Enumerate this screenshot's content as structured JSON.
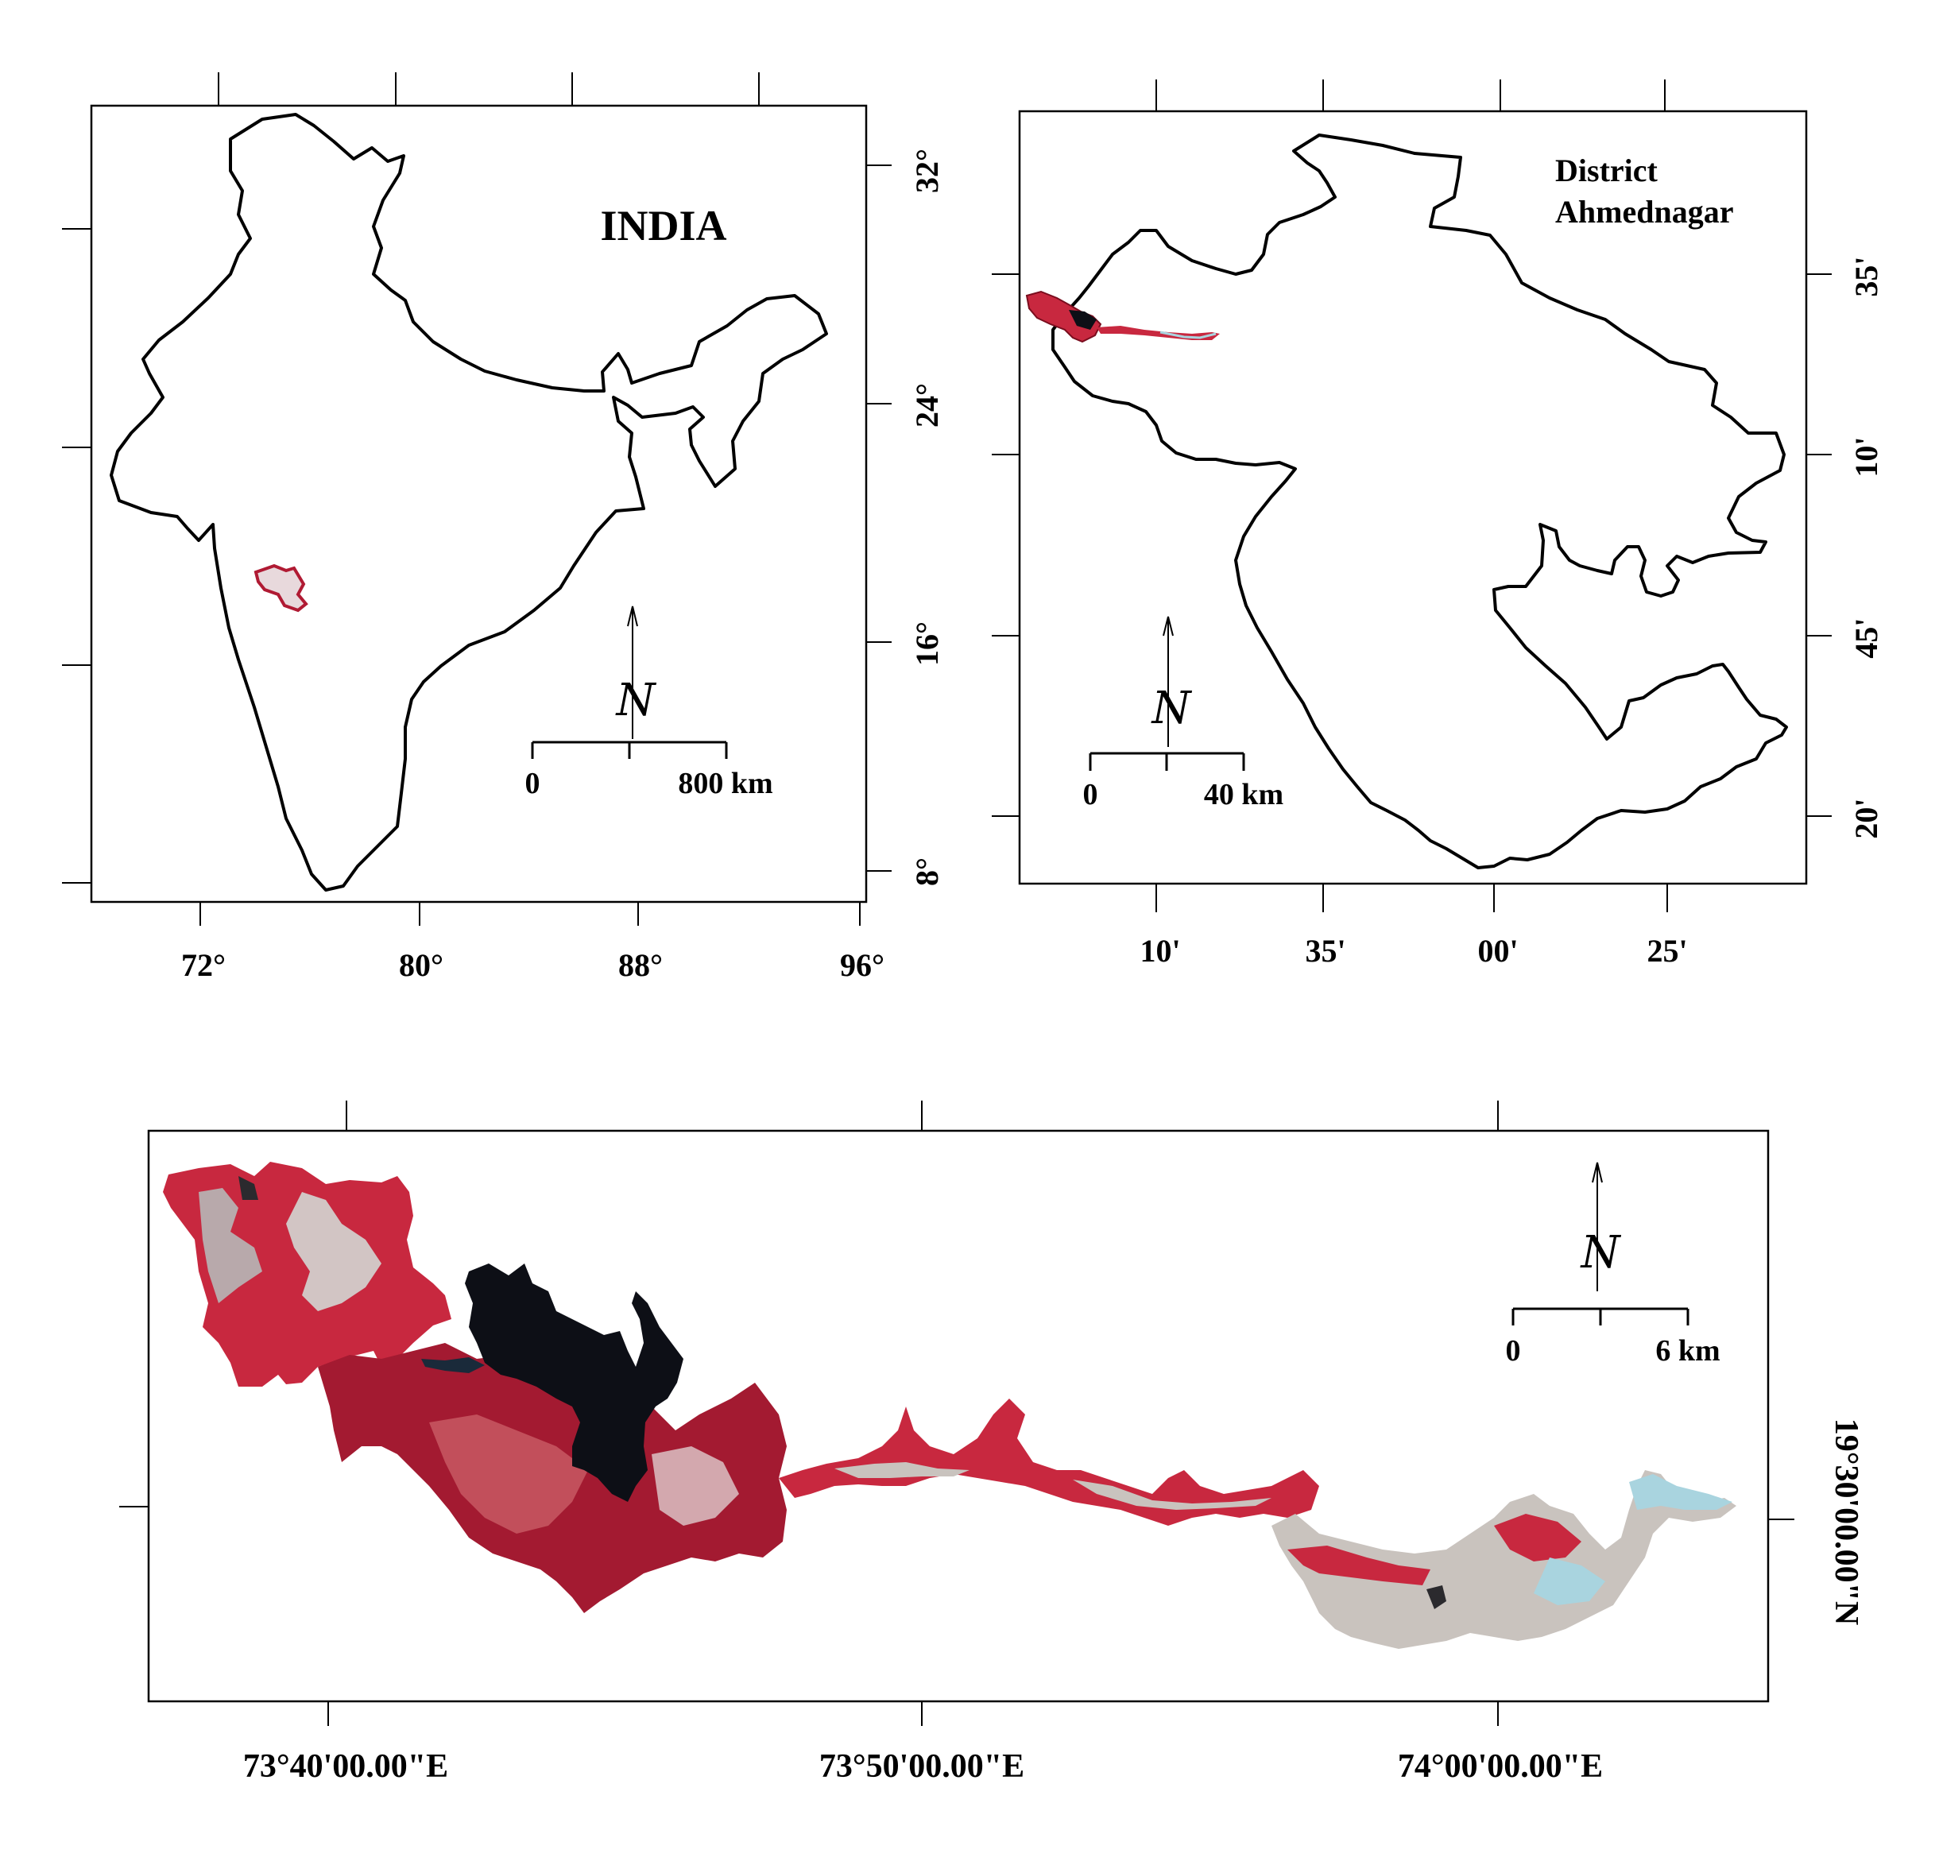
{
  "colors": {
    "background": "#ffffff",
    "ink": "#000000",
    "vegetation": "#c8283f",
    "dark_vegetation": "#8a1022",
    "reservoir": "#0d0f16",
    "bare_soil": "#c9c3be",
    "fallow_cyan": "#a9d4df"
  },
  "india_map": {
    "title": "INDIA",
    "longitude_labels": [
      "72°",
      "80°",
      "88°",
      "96°"
    ],
    "latitude_labels": [
      "32°",
      "24°",
      "16°",
      "8°"
    ],
    "scale_bar": {
      "start_label": "0",
      "end_label": "800 km"
    },
    "north_arrow_icon": "north-arrow-icon"
  },
  "district_map": {
    "title_line1": "District",
    "title_line2": "Ahmednagar",
    "longitude_labels": [
      "10'",
      "35'",
      "00'",
      "25'"
    ],
    "latitude_labels": [
      "35'",
      "10'",
      "45'",
      "20'"
    ],
    "scale_bar": {
      "start_label": "0",
      "end_label": "40 km"
    },
    "north_arrow_icon": "north-arrow-icon"
  },
  "study_area_map": {
    "longitude_labels": [
      "73°40'00.00\"E",
      "73°50'00.00\"E",
      "74°00'00.00\"E"
    ],
    "latitude_label": "19°30'00.00\"N",
    "scale_bar": {
      "start_label": "0",
      "end_label": "6 km"
    },
    "north_arrow_icon": "north-arrow-icon",
    "imagery": "false-colour composite satellite image of the study area"
  }
}
